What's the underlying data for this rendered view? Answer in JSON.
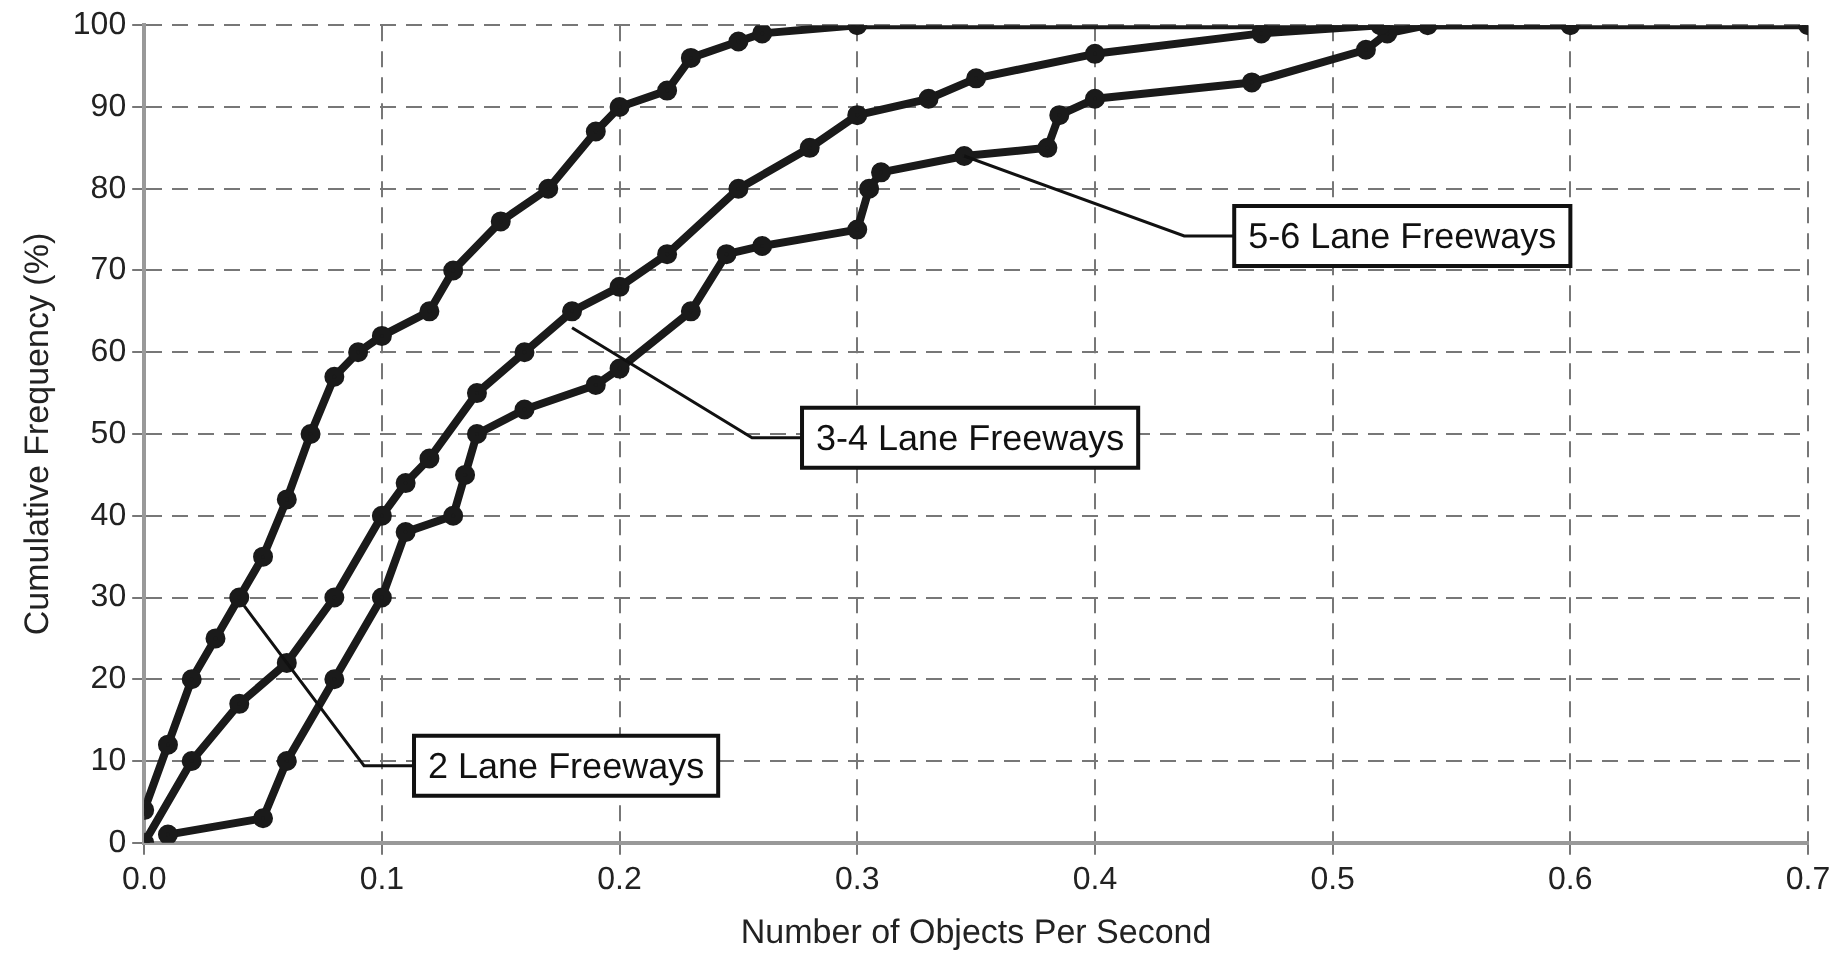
{
  "chart_data": {
    "type": "line",
    "xlabel": "Number of Objects Per Second",
    "ylabel": "Cumulative Frequency (%)",
    "xlim": [
      0,
      0.7
    ],
    "xticks": [
      {
        "value": 0,
        "label": "0.0"
      },
      0.1,
      0.2,
      0.3,
      0.4,
      0.5,
      0.6,
      0.7
    ],
    "ylim": [
      0,
      100
    ],
    "yticks": [
      0,
      10,
      20,
      30,
      40,
      50,
      60,
      70,
      80,
      90,
      100
    ],
    "grid": true,
    "line_style": "solid",
    "marker": "circle",
    "legend": false,
    "annotations": [
      {
        "text": "2 Lane Freeways",
        "x": 0.042,
        "y": 29
      },
      {
        "text": "3-4 Lane Freeways",
        "x": 0.18,
        "y": 63
      },
      {
        "text": "5-6 Lane Freeways",
        "x": 0.345,
        "y": 84
      }
    ],
    "series": [
      {
        "color": "#1a1a1a",
        "x": [
          0,
          0.01,
          0.02,
          0.03,
          0.04,
          0.05,
          0.06,
          0.07,
          0.08,
          0.09,
          0.1,
          0.12,
          0.13,
          0.15,
          0.17,
          0.19,
          0.2,
          0.22,
          0.23,
          0.25,
          0.26,
          0.3,
          0.7
        ],
        "values": [
          4,
          12,
          20,
          25,
          30,
          35,
          42,
          50,
          57,
          60,
          62,
          65,
          70,
          76,
          80,
          87,
          90,
          92,
          96,
          98,
          99,
          100,
          100
        ]
      },
      {
        "color": "#1a1a1a",
        "x": [
          0,
          0.02,
          0.04,
          0.06,
          0.08,
          0.1,
          0.11,
          0.12,
          0.14,
          0.16,
          0.18,
          0.2,
          0.22,
          0.25,
          0.28,
          0.3,
          0.33,
          0.35,
          0.4,
          0.47,
          0.52
        ],
        "values": [
          0,
          10,
          17,
          22,
          30,
          40,
          44,
          47,
          55,
          60,
          65,
          68,
          72,
          80,
          85,
          89,
          91,
          93.5,
          96.5,
          99,
          100
        ]
      },
      {
        "color": "#1a1a1a",
        "x": [
          0.01,
          0.05,
          0.06,
          0.08,
          0.1,
          0.11,
          0.13,
          0.135,
          0.14,
          0.16,
          0.19,
          0.2,
          0.23,
          0.245,
          0.26,
          0.3,
          0.305,
          0.31,
          0.345,
          0.38,
          0.385,
          0.4,
          0.466,
          0.514,
          0.523,
          0.54,
          0.6
        ],
        "values": [
          1,
          3,
          10,
          20,
          30,
          38,
          40,
          45,
          50,
          53,
          56,
          58,
          65,
          72,
          73,
          75,
          80,
          82,
          84,
          85,
          89,
          91,
          93,
          97,
          99,
          100,
          100
        ]
      }
    ]
  }
}
